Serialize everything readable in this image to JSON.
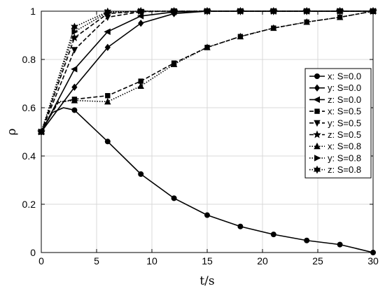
{
  "chart_data": {
    "type": "line",
    "xlabel": "t/s",
    "ylabel": "ρ",
    "xlim": [
      0,
      30
    ],
    "ylim": [
      0,
      1
    ],
    "xticks": [
      "0",
      "5",
      "10",
      "15",
      "20",
      "25",
      "30"
    ],
    "yticks": [
      "0",
      "0.2",
      "0.4",
      "0.6",
      "0.8",
      "1"
    ],
    "grid": true,
    "legend_position": "right",
    "series": [
      {
        "name": "x: S=0.0",
        "line": "solid",
        "marker": "circle",
        "x": [
          0,
          1,
          2,
          3,
          6,
          9,
          12,
          15,
          18,
          21,
          24,
          27,
          30
        ],
        "y": [
          0.5,
          0.58,
          0.6,
          0.59,
          0.46,
          0.325,
          0.225,
          0.155,
          0.108,
          0.075,
          0.05,
          0.033,
          0.0
        ],
        "marker_x": [
          0,
          3,
          6,
          9,
          12,
          15,
          18,
          21,
          24,
          27,
          30
        ]
      },
      {
        "name": "y: S=0.0",
        "line": "solid",
        "marker": "diamond",
        "x": [
          0,
          3,
          6,
          9,
          12,
          15,
          18,
          21,
          24,
          27,
          30
        ],
        "y": [
          0.5,
          0.685,
          0.85,
          0.95,
          0.99,
          1.0,
          1.0,
          1.0,
          1.0,
          1.0,
          1.0
        ],
        "marker_x": [
          0,
          3,
          6,
          9,
          12,
          15,
          18,
          21,
          24,
          27,
          30
        ]
      },
      {
        "name": "z: S=0.0",
        "line": "solid",
        "marker": "triangle-left",
        "x": [
          0,
          3,
          6,
          9,
          12,
          15,
          18,
          21,
          24,
          27,
          30
        ],
        "y": [
          0.5,
          0.76,
          0.915,
          0.98,
          0.997,
          1.0,
          1.0,
          1.0,
          1.0,
          1.0,
          1.0
        ],
        "marker_x": [
          0,
          3,
          6,
          9,
          12,
          15,
          18,
          21,
          24,
          27,
          30
        ]
      },
      {
        "name": "x: S=0.5",
        "line": "dashed",
        "marker": "square",
        "x": [
          0,
          1.5,
          3,
          6,
          9,
          12,
          15,
          18,
          21,
          24,
          27,
          30
        ],
        "y": [
          0.5,
          0.62,
          0.635,
          0.65,
          0.71,
          0.785,
          0.85,
          0.895,
          0.93,
          0.955,
          0.975,
          1.0
        ],
        "marker_x": [
          0,
          3,
          6,
          9,
          12,
          15,
          18,
          21,
          24,
          27,
          30
        ]
      },
      {
        "name": "y: S=0.5",
        "line": "dashed",
        "marker": "triangle-down",
        "x": [
          0,
          3,
          6,
          9,
          12,
          15,
          18,
          21,
          24,
          27,
          30
        ],
        "y": [
          0.5,
          0.84,
          0.975,
          0.998,
          1.0,
          1.0,
          1.0,
          1.0,
          1.0,
          1.0,
          1.0
        ],
        "marker_x": [
          0,
          3,
          6,
          9,
          12,
          15,
          18,
          21,
          24,
          27,
          30
        ]
      },
      {
        "name": "z: S=0.5",
        "line": "dashed",
        "marker": "star",
        "x": [
          0,
          3,
          6,
          9,
          12,
          15,
          18,
          21,
          24,
          27,
          30
        ],
        "y": [
          0.5,
          0.89,
          0.99,
          1.0,
          1.0,
          1.0,
          1.0,
          1.0,
          1.0,
          1.0,
          1.0
        ],
        "marker_x": [
          0,
          3,
          6,
          9,
          12,
          15,
          18,
          21,
          24,
          27,
          30
        ]
      },
      {
        "name": "x: S=0.8",
        "line": "dotted",
        "marker": "triangle-up",
        "x": [
          0,
          1.5,
          3,
          6,
          9,
          12,
          15,
          18,
          21,
          24,
          27,
          30
        ],
        "y": [
          0.5,
          0.625,
          0.63,
          0.625,
          0.69,
          0.78,
          0.85,
          0.895,
          0.93,
          0.955,
          0.975,
          1.0
        ],
        "marker_x": [
          0,
          3,
          6,
          9,
          12,
          15,
          18,
          21,
          24,
          27,
          30
        ]
      },
      {
        "name": "y: S=0.8",
        "line": "dotted",
        "marker": "triangle-right",
        "x": [
          0,
          3,
          6,
          9,
          12,
          15,
          18,
          21,
          24,
          27,
          30
        ],
        "y": [
          0.5,
          0.915,
          0.995,
          1.0,
          1.0,
          1.0,
          1.0,
          1.0,
          1.0,
          1.0,
          1.0
        ],
        "marker_x": [
          0,
          3,
          6,
          9,
          12,
          15,
          18,
          21,
          24,
          27,
          30
        ]
      },
      {
        "name": "z: S=0.8",
        "line": "dotted",
        "marker": "hexagram",
        "x": [
          0,
          3,
          6,
          9,
          12,
          15,
          18,
          21,
          24,
          27,
          30
        ],
        "y": [
          0.5,
          0.935,
          0.998,
          1.0,
          1.0,
          1.0,
          1.0,
          1.0,
          1.0,
          1.0,
          1.0
        ],
        "marker_x": [
          0,
          3,
          6,
          9,
          12,
          15,
          18,
          21,
          24,
          27,
          30
        ]
      }
    ]
  }
}
